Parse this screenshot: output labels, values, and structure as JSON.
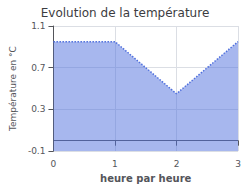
{
  "chart_data": {
    "type": "area",
    "title": "Evolution de la température",
    "xlabel": "heure par heure",
    "ylabel": "Température en °C",
    "x": [
      0,
      1,
      2,
      3
    ],
    "values": [
      0.95,
      0.95,
      0.45,
      0.95
    ],
    "xlim": [
      0,
      3
    ],
    "xticks": [
      0,
      1,
      2,
      3
    ],
    "ylim": [
      -0.1,
      1.1
    ],
    "yticks": [
      -0.1,
      0.3,
      0.7,
      1.1
    ],
    "line_style": "dotted",
    "grid": true
  }
}
